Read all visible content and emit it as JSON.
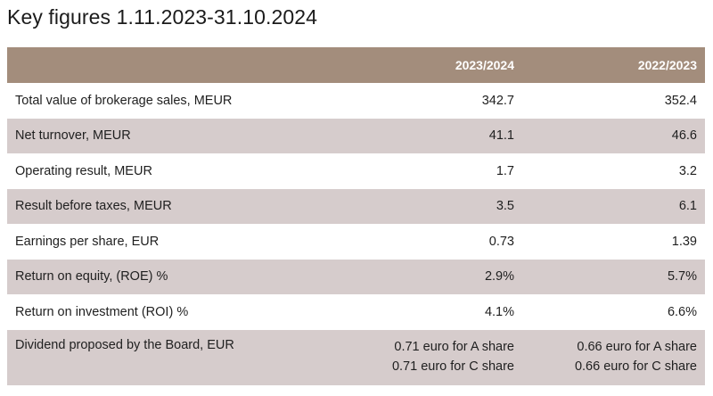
{
  "title": "Key figures 1.11.2023-31.10.2024",
  "table": {
    "headers": [
      "",
      "2023/2024",
      "2022/2023"
    ],
    "rows": [
      {
        "label": "Total value of brokerage sales, MEUR",
        "v2024": "342.7",
        "v2023": "352.4"
      },
      {
        "label": "Net turnover, MEUR",
        "v2024": "41.1",
        "v2023": "46.6"
      },
      {
        "label": "Operating result, MEUR",
        "v2024": "1.7",
        "v2023": "3.2"
      },
      {
        "label": "Result before taxes, MEUR",
        "v2024": "3.5",
        "v2023": "6.1"
      },
      {
        "label": "Earnings per share, EUR",
        "v2024": "0.73",
        "v2023": "1.39"
      },
      {
        "label": "Return on equity, (ROE) %",
        "v2024": "2.9%",
        "v2023": "5.7%"
      },
      {
        "label": "Return on investment (ROI) %",
        "v2024": "4.1%",
        "v2023": "6.6%"
      }
    ],
    "dividend": {
      "label": "Dividend proposed by the Board, EUR",
      "v2024_a": "0.71 euro for A share",
      "v2024_c": "0.71 euro for C share",
      "v2023_a": "0.66 euro for A share",
      "v2023_c": "0.66 euro for C share"
    }
  },
  "colors": {
    "header_bg": "#a38d7c",
    "shaded_row": "#d6cccc",
    "plain_row": "#ffffff"
  }
}
